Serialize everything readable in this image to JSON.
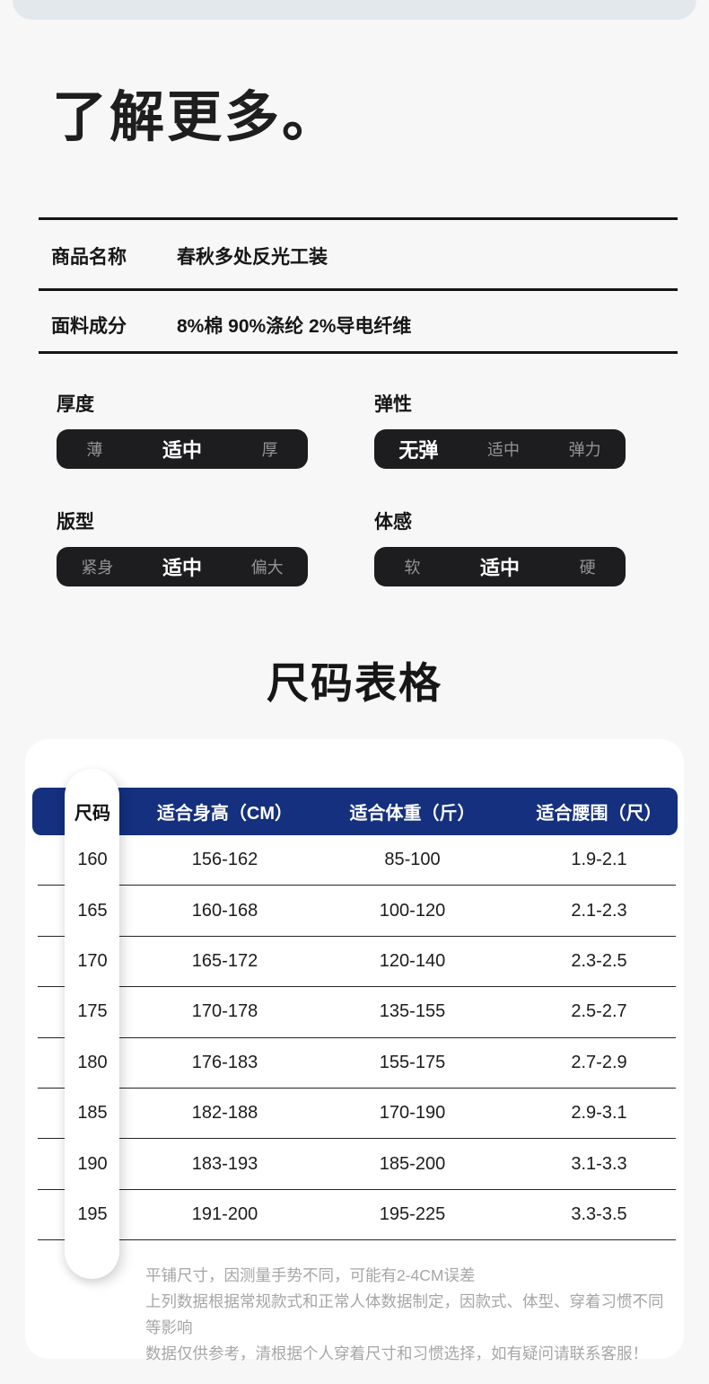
{
  "page": {
    "title": "了解更多。",
    "section_title": "尺码表格"
  },
  "product_info": {
    "rows": [
      {
        "label": "商品名称",
        "value": "春秋多处反光工装"
      },
      {
        "label": "面料成分",
        "value": "8%棉 90%涤纶 2%导电纤维"
      }
    ]
  },
  "attributes": [
    {
      "label": "厚度",
      "options": [
        "薄",
        "适中",
        "厚"
      ],
      "selected_index": 1,
      "selected": "适中"
    },
    {
      "label": "弹性",
      "options": [
        "无弹",
        "适中",
        "弹力"
      ],
      "selected_index": 0,
      "selected": "无弹"
    },
    {
      "label": "版型",
      "options": [
        "紧身",
        "适中",
        "偏大"
      ],
      "selected_index": 1,
      "selected": "适中"
    },
    {
      "label": "体感",
      "options": [
        "软",
        "适中",
        "硬"
      ],
      "selected_index": 1,
      "selected": "适中"
    }
  ],
  "size_table": {
    "headers": [
      "尺码",
      "适合身高（CM）",
      "适合体重（斤）",
      "适合腰围（尺）"
    ],
    "rows": [
      {
        "size": "160",
        "height": "156-162",
        "weight": "85-100",
        "waist": "1.9-2.1"
      },
      {
        "size": "165",
        "height": "160-168",
        "weight": "100-120",
        "waist": "2.1-2.3"
      },
      {
        "size": "170",
        "height": "165-172",
        "weight": "120-140",
        "waist": "2.3-2.5"
      },
      {
        "size": "175",
        "height": "170-178",
        "weight": "135-155",
        "waist": "2.5-2.7"
      },
      {
        "size": "180",
        "height": "176-183",
        "weight": "155-175",
        "waist": "2.7-2.9"
      },
      {
        "size": "185",
        "height": "182-188",
        "weight": "170-190",
        "waist": "2.9-3.1"
      },
      {
        "size": "190",
        "height": "183-193",
        "weight": "185-200",
        "waist": "3.1-3.3"
      },
      {
        "size": "195",
        "height": "191-200",
        "weight": "195-225",
        "waist": "3.3-3.5"
      }
    ],
    "notes": [
      "平铺尺寸，因测量手势不同，可能有2-4CM误差",
      "上列数据根据常规款式和正常人体数据制定，因款式、体型、穿着习惯不同等影响",
      "数据仅供参考，清根据个人穿着尺寸和习惯选择，如有疑问请联系客服！"
    ]
  },
  "colors": {
    "page_bg": "#f7f7f8",
    "top_bar": "#e2e8ec",
    "attr_pill_bg": "#1d1d1f",
    "table_header_navy": "#14307e",
    "divider": "#242424",
    "note_gray": "#a6a6a6"
  }
}
